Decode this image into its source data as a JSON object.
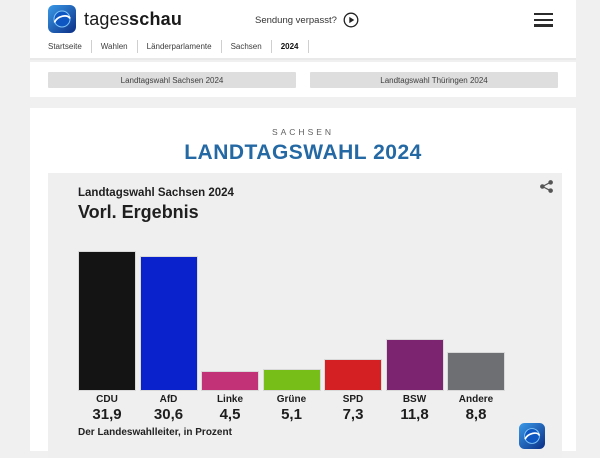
{
  "header": {
    "brand_regular": "tages",
    "brand_bold": "schau",
    "watch_label": "Sendung verpasst?"
  },
  "breadcrumb": {
    "items": [
      "Startseite",
      "Wahlen",
      "Länderparlamente",
      "Sachsen",
      "2024"
    ]
  },
  "tabs": {
    "sachsen": "Landtagswahl Sachsen 2024",
    "thueringen": "Landtagswahl Thüringen 2024"
  },
  "main": {
    "kicker": "SACHSEN",
    "title": "LANDTAGSWAHL 2024",
    "title_color": "#2569a4"
  },
  "chart_data": {
    "type": "bar",
    "title": "Landtagswahl Sachsen 2024",
    "subtitle": "Vorl. Ergebnis",
    "source": "Der Landeswahlleiter, in Prozent",
    "unit": "percent",
    "categories": [
      "CDU",
      "AfD",
      "Linke",
      "Grüne",
      "SPD",
      "BSW",
      "Andere"
    ],
    "values": [
      31.9,
      30.6,
      4.5,
      5.1,
      7.3,
      11.8,
      8.8
    ],
    "value_labels": [
      "31,9",
      "30,6",
      "4,5",
      "5,1",
      "7,3",
      "11,8",
      "8,8"
    ],
    "colors": [
      "#141414",
      "#0a22cc",
      "#c23276",
      "#78be18",
      "#d42023",
      "#7d2470",
      "#6e6f72"
    ],
    "ylim": [
      0,
      32
    ],
    "grid": false,
    "legend": false
  }
}
